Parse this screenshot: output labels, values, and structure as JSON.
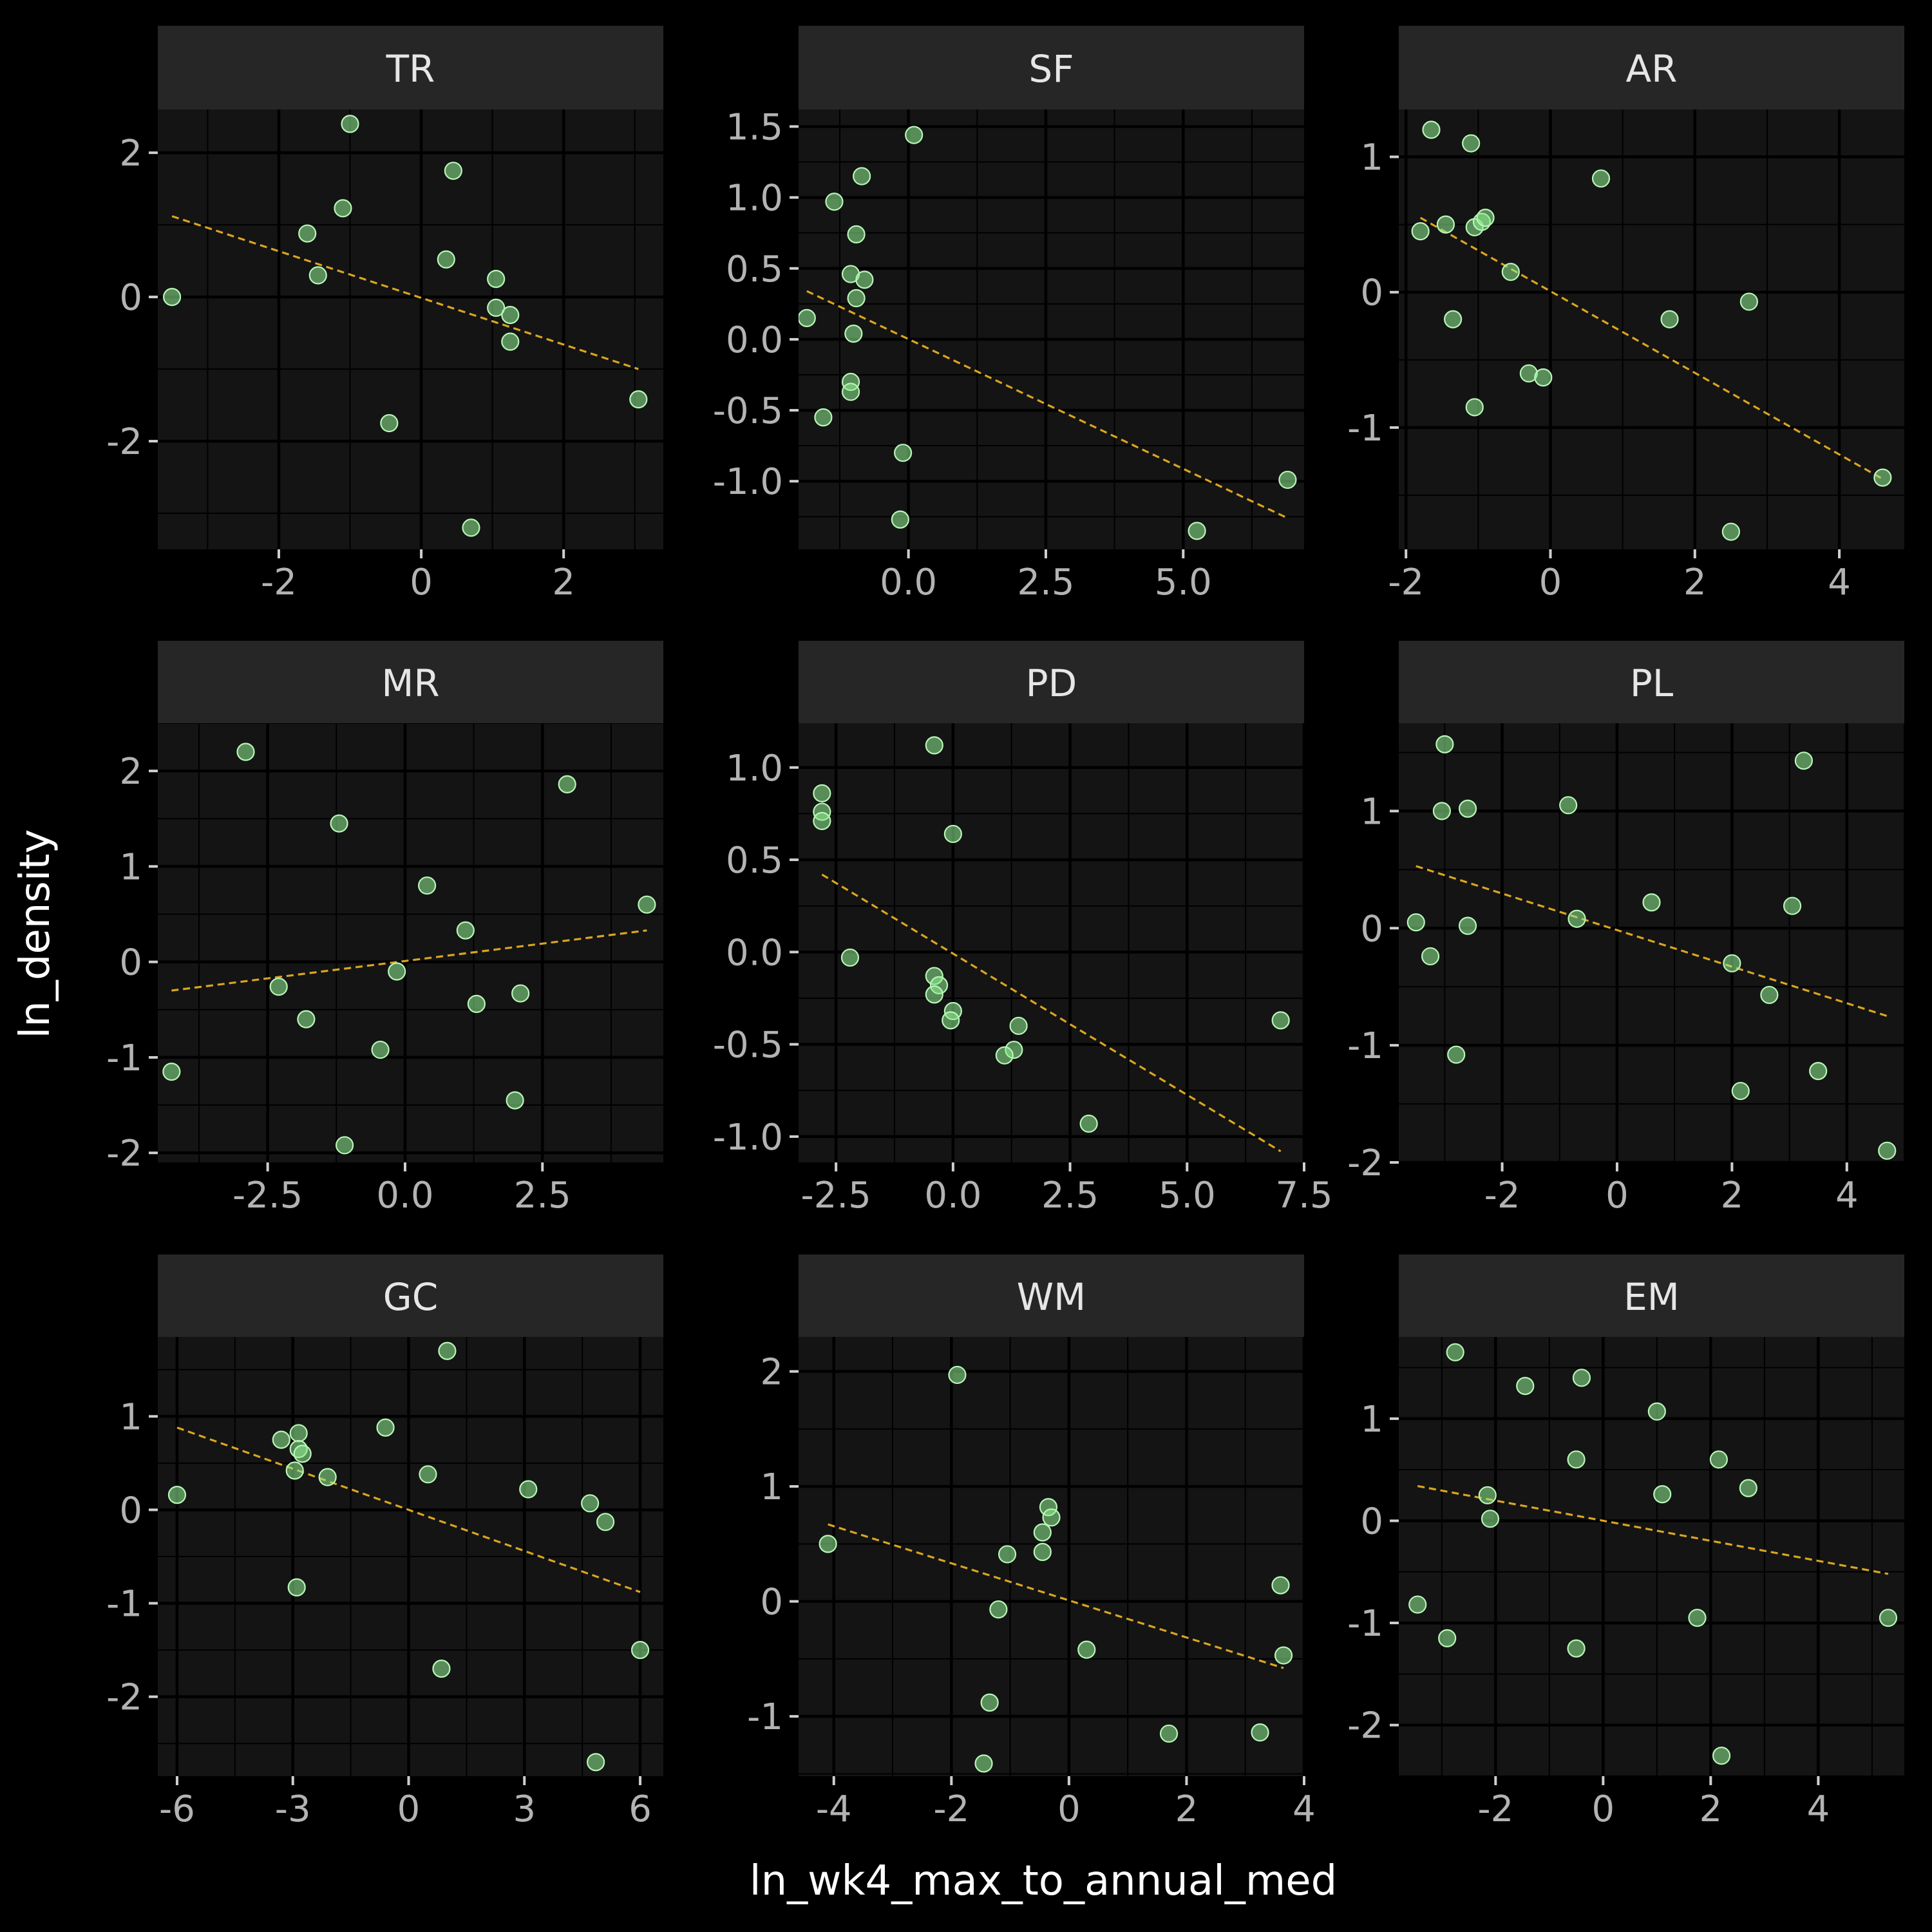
{
  "chart_data": {
    "type": "scatter",
    "xlabel": "ln_wk4_max_to_annual_med",
    "ylabel": "ln_density",
    "colors": {
      "point_fill": "#90ee90",
      "point_stroke": "#b8f5b8",
      "fit_line": "#daa520",
      "strip_bg": "#262626",
      "panel_bg": "#141414",
      "text": "#b3b3b3"
    },
    "panels": [
      {
        "name": "TR",
        "xlim": [
          -3.7,
          3.4
        ],
        "ylim": [
          -3.5,
          2.6
        ],
        "xticks": [
          {
            "v": -2,
            "label": "-2"
          },
          {
            "v": 0,
            "label": "0"
          },
          {
            "v": 2,
            "label": "2"
          }
        ],
        "yticks": [
          {
            "v": -2,
            "label": "-2"
          },
          {
            "v": 0,
            "label": "0"
          },
          {
            "v": 2,
            "label": "2"
          }
        ],
        "fit": [
          [
            -3.5,
            1.12
          ],
          [
            3.05,
            -1.0
          ]
        ],
        "points": [
          [
            -3.5,
            0.0
          ],
          [
            -1.0,
            2.4
          ],
          [
            -1.6,
            0.88
          ],
          [
            -1.1,
            1.23
          ],
          [
            -1.45,
            0.3
          ],
          [
            0.45,
            1.75
          ],
          [
            0.35,
            0.52
          ],
          [
            1.05,
            0.25
          ],
          [
            1.05,
            -0.15
          ],
          [
            1.25,
            -0.25
          ],
          [
            1.25,
            -0.62
          ],
          [
            -0.45,
            -1.75
          ],
          [
            0.7,
            -3.2
          ],
          [
            3.05,
            -1.42
          ]
        ]
      },
      {
        "name": "SF",
        "xlim": [
          -2.0,
          7.2
        ],
        "ylim": [
          -1.48,
          1.62
        ],
        "xticks": [
          {
            "v": 0,
            "label": "0.0"
          },
          {
            "v": 2.5,
            "label": "2.5"
          },
          {
            "v": 5,
            "label": "5.0"
          }
        ],
        "yticks": [
          {
            "v": -1,
            "label": "-1.0"
          },
          {
            "v": -0.5,
            "label": "-0.5"
          },
          {
            "v": 0,
            "label": "0.0"
          },
          {
            "v": 0.5,
            "label": "0.5"
          },
          {
            "v": 1,
            "label": "1.0"
          },
          {
            "v": 1.5,
            "label": "1.5"
          }
        ],
        "fit": [
          [
            -1.85,
            0.34
          ],
          [
            6.9,
            -1.26
          ]
        ],
        "points": [
          [
            0.1,
            1.44
          ],
          [
            -0.85,
            1.15
          ],
          [
            -1.35,
            0.97
          ],
          [
            -0.95,
            0.74
          ],
          [
            -1.05,
            0.46
          ],
          [
            -0.8,
            0.42
          ],
          [
            -0.95,
            0.29
          ],
          [
            -1.85,
            0.15
          ],
          [
            -1.0,
            0.04
          ],
          [
            -1.05,
            -0.3
          ],
          [
            -1.05,
            -0.37
          ],
          [
            -1.55,
            -0.55
          ],
          [
            -0.1,
            -0.8
          ],
          [
            -0.15,
            -1.27
          ],
          [
            5.25,
            -1.35
          ],
          [
            6.9,
            -0.99
          ]
        ]
      },
      {
        "name": "AR",
        "xlim": [
          -2.1,
          4.9
        ],
        "ylim": [
          -1.9,
          1.35
        ],
        "xticks": [
          {
            "v": -2,
            "label": "-2"
          },
          {
            "v": 0,
            "label": "0"
          },
          {
            "v": 2,
            "label": "2"
          },
          {
            "v": 4,
            "label": "4"
          }
        ],
        "yticks": [
          {
            "v": -1,
            "label": "-1"
          },
          {
            "v": 0,
            "label": "0"
          },
          {
            "v": 1,
            "label": "1"
          }
        ],
        "fit": [
          [
            -1.8,
            0.55
          ],
          [
            4.6,
            -1.38
          ]
        ],
        "points": [
          [
            -1.65,
            1.2
          ],
          [
            -1.1,
            1.1
          ],
          [
            0.7,
            0.84
          ],
          [
            -1.8,
            0.45
          ],
          [
            -1.45,
            0.5
          ],
          [
            -1.05,
            0.48
          ],
          [
            -0.95,
            0.52
          ],
          [
            -0.9,
            0.55
          ],
          [
            -0.55,
            0.15
          ],
          [
            -1.35,
            -0.2
          ],
          [
            -1.05,
            -0.85
          ],
          [
            -0.3,
            -0.6
          ],
          [
            -0.1,
            -0.63
          ],
          [
            1.65,
            -0.2
          ],
          [
            2.75,
            -0.07
          ],
          [
            2.5,
            -1.77
          ],
          [
            4.6,
            -1.37
          ]
        ]
      },
      {
        "name": "MR",
        "xlim": [
          -4.5,
          4.7
        ],
        "ylim": [
          -2.1,
          2.5
        ],
        "xticks": [
          {
            "v": -2.5,
            "label": "-2.5"
          },
          {
            "v": 0,
            "label": "0.0"
          },
          {
            "v": 2.5,
            "label": "2.5"
          }
        ],
        "yticks": [
          {
            "v": -2,
            "label": "-2"
          },
          {
            "v": -1,
            "label": "-1"
          },
          {
            "v": 0,
            "label": "0"
          },
          {
            "v": 1,
            "label": "1"
          },
          {
            "v": 2,
            "label": "2"
          }
        ],
        "fit": [
          [
            -4.25,
            -0.3
          ],
          [
            4.4,
            0.33
          ]
        ],
        "points": [
          [
            -2.9,
            2.2
          ],
          [
            2.95,
            1.86
          ],
          [
            -1.2,
            1.45
          ],
          [
            0.4,
            0.8
          ],
          [
            1.1,
            0.33
          ],
          [
            4.4,
            0.6
          ],
          [
            -2.3,
            -0.26
          ],
          [
            -0.15,
            -0.1
          ],
          [
            -1.8,
            -0.6
          ],
          [
            1.3,
            -0.44
          ],
          [
            2.1,
            -0.33
          ],
          [
            -0.45,
            -0.92
          ],
          [
            2.0,
            -1.45
          ],
          [
            -1.1,
            -1.92
          ],
          [
            -4.25,
            -1.15
          ]
        ]
      },
      {
        "name": "PD",
        "xlim": [
          -3.3,
          7.5
        ],
        "ylim": [
          -1.14,
          1.24
        ],
        "xticks": [
          {
            "v": -2.5,
            "label": "-2.5"
          },
          {
            "v": 0,
            "label": "0.0"
          },
          {
            "v": 2.5,
            "label": "2.5"
          },
          {
            "v": 5,
            "label": "5.0"
          },
          {
            "v": 7.5,
            "label": "7.5"
          }
        ],
        "yticks": [
          {
            "v": -1,
            "label": "-1.0"
          },
          {
            "v": -0.5,
            "label": "-0.5"
          },
          {
            "v": 0,
            "label": "0.0"
          },
          {
            "v": 0.5,
            "label": "0.5"
          },
          {
            "v": 1,
            "label": "1.0"
          }
        ],
        "fit": [
          [
            -2.8,
            0.42
          ],
          [
            7.0,
            -1.08
          ]
        ],
        "points": [
          [
            -0.4,
            1.12
          ],
          [
            -2.8,
            0.86
          ],
          [
            -2.8,
            0.76
          ],
          [
            -2.8,
            0.71
          ],
          [
            0.0,
            0.64
          ],
          [
            -2.2,
            -0.03
          ],
          [
            -0.4,
            -0.13
          ],
          [
            -0.3,
            -0.18
          ],
          [
            -0.4,
            -0.23
          ],
          [
            0.0,
            -0.32
          ],
          [
            -0.05,
            -0.37
          ],
          [
            1.4,
            -0.4
          ],
          [
            1.3,
            -0.53
          ],
          [
            1.1,
            -0.56
          ],
          [
            2.9,
            -0.93
          ],
          [
            7.0,
            -0.37
          ]
        ]
      },
      {
        "name": "PL",
        "xlim": [
          -3.8,
          5.0
        ],
        "ylim": [
          -2.0,
          1.75
        ],
        "xticks": [
          {
            "v": -2,
            "label": "-2"
          },
          {
            "v": 0,
            "label": "0"
          },
          {
            "v": 2,
            "label": "2"
          },
          {
            "v": 4,
            "label": "4"
          }
        ],
        "yticks": [
          {
            "v": -2,
            "label": "-2"
          },
          {
            "v": -1,
            "label": "-1"
          },
          {
            "v": 0,
            "label": "0"
          },
          {
            "v": 1,
            "label": "1"
          }
        ],
        "fit": [
          [
            -3.5,
            0.53
          ],
          [
            4.7,
            -0.75
          ]
        ],
        "points": [
          [
            -3.0,
            1.57
          ],
          [
            3.25,
            1.43
          ],
          [
            -3.05,
            1.0
          ],
          [
            -2.6,
            1.02
          ],
          [
            -0.85,
            1.05
          ],
          [
            0.6,
            0.22
          ],
          [
            3.05,
            0.19
          ],
          [
            -3.5,
            0.05
          ],
          [
            -2.6,
            0.02
          ],
          [
            -0.7,
            0.08
          ],
          [
            -3.25,
            -0.24
          ],
          [
            2.0,
            -0.3
          ],
          [
            2.65,
            -0.57
          ],
          [
            -2.8,
            -1.08
          ],
          [
            2.15,
            -1.39
          ],
          [
            3.5,
            -1.22
          ],
          [
            4.7,
            -1.9
          ]
        ]
      },
      {
        "name": "GC",
        "xlim": [
          -6.5,
          6.6
        ],
        "ylim": [
          -2.85,
          1.85
        ],
        "xticks": [
          {
            "v": -6,
            "label": "-6"
          },
          {
            "v": -3,
            "label": "-3"
          },
          {
            "v": 0,
            "label": "0"
          },
          {
            "v": 3,
            "label": "3"
          },
          {
            "v": 6,
            "label": "6"
          }
        ],
        "yticks": [
          {
            "v": -2,
            "label": "-2"
          },
          {
            "v": -1,
            "label": "-1"
          },
          {
            "v": 0,
            "label": "0"
          },
          {
            "v": 1,
            "label": "1"
          }
        ],
        "fit": [
          [
            -6.0,
            0.88
          ],
          [
            6.0,
            -0.88
          ]
        ],
        "points": [
          [
            1.0,
            1.7
          ],
          [
            -0.6,
            0.88
          ],
          [
            -3.3,
            0.75
          ],
          [
            -2.85,
            0.82
          ],
          [
            -2.85,
            0.65
          ],
          [
            -2.75,
            0.6
          ],
          [
            -2.95,
            0.42
          ],
          [
            -2.1,
            0.35
          ],
          [
            0.5,
            0.38
          ],
          [
            3.1,
            0.22
          ],
          [
            4.7,
            0.07
          ],
          [
            5.1,
            -0.13
          ],
          [
            -6.0,
            0.16
          ],
          [
            -2.9,
            -0.83
          ],
          [
            0.85,
            -1.7
          ],
          [
            6.0,
            -1.5
          ],
          [
            4.85,
            -2.7
          ]
        ]
      },
      {
        "name": "WM",
        "xlim": [
          -4.6,
          4.0
        ],
        "ylim": [
          -1.52,
          2.3
        ],
        "xticks": [
          {
            "v": -4,
            "label": "-4"
          },
          {
            "v": -2,
            "label": "-2"
          },
          {
            "v": 0,
            "label": "0"
          },
          {
            "v": 2,
            "label": "2"
          },
          {
            "v": 4,
            "label": "4"
          }
        ],
        "yticks": [
          {
            "v": -1,
            "label": "-1"
          },
          {
            "v": 0,
            "label": "0"
          },
          {
            "v": 1,
            "label": "1"
          },
          {
            "v": 2,
            "label": "2"
          }
        ],
        "fit": [
          [
            -4.1,
            0.67
          ],
          [
            3.65,
            -0.58
          ]
        ],
        "points": [
          [
            -1.9,
            1.97
          ],
          [
            -0.35,
            0.82
          ],
          [
            -0.3,
            0.73
          ],
          [
            -0.45,
            0.6
          ],
          [
            -0.45,
            0.43
          ],
          [
            -1.05,
            0.41
          ],
          [
            -4.1,
            0.5
          ],
          [
            -1.2,
            -0.07
          ],
          [
            0.3,
            -0.42
          ],
          [
            -1.35,
            -0.88
          ],
          [
            -1.45,
            -1.41
          ],
          [
            1.7,
            -1.15
          ],
          [
            3.25,
            -1.14
          ],
          [
            3.6,
            0.14
          ],
          [
            3.65,
            -0.47
          ]
        ]
      },
      {
        "name": "EM",
        "xlim": [
          -3.8,
          5.6
        ],
        "ylim": [
          -2.5,
          1.8
        ],
        "xticks": [
          {
            "v": -2,
            "label": "-2"
          },
          {
            "v": 0,
            "label": "0"
          },
          {
            "v": 2,
            "label": "2"
          },
          {
            "v": 4,
            "label": "4"
          }
        ],
        "yticks": [
          {
            "v": -2,
            "label": "-2"
          },
          {
            "v": -1,
            "label": "-1"
          },
          {
            "v": 0,
            "label": "0"
          },
          {
            "v": 1,
            "label": "1"
          }
        ],
        "fit": [
          [
            -3.45,
            0.34
          ],
          [
            5.3,
            -0.52
          ]
        ],
        "points": [
          [
            -2.75,
            1.65
          ],
          [
            -1.45,
            1.32
          ],
          [
            -0.4,
            1.4
          ],
          [
            1.0,
            1.07
          ],
          [
            -0.5,
            0.6
          ],
          [
            2.15,
            0.6
          ],
          [
            2.7,
            0.32
          ],
          [
            1.1,
            0.26
          ],
          [
            -2.15,
            0.25
          ],
          [
            -2.1,
            0.02
          ],
          [
            -3.45,
            -0.82
          ],
          [
            -2.9,
            -1.15
          ],
          [
            -0.5,
            -1.25
          ],
          [
            1.75,
            -0.95
          ],
          [
            2.2,
            -2.3
          ],
          [
            5.3,
            -0.95
          ]
        ]
      }
    ]
  }
}
